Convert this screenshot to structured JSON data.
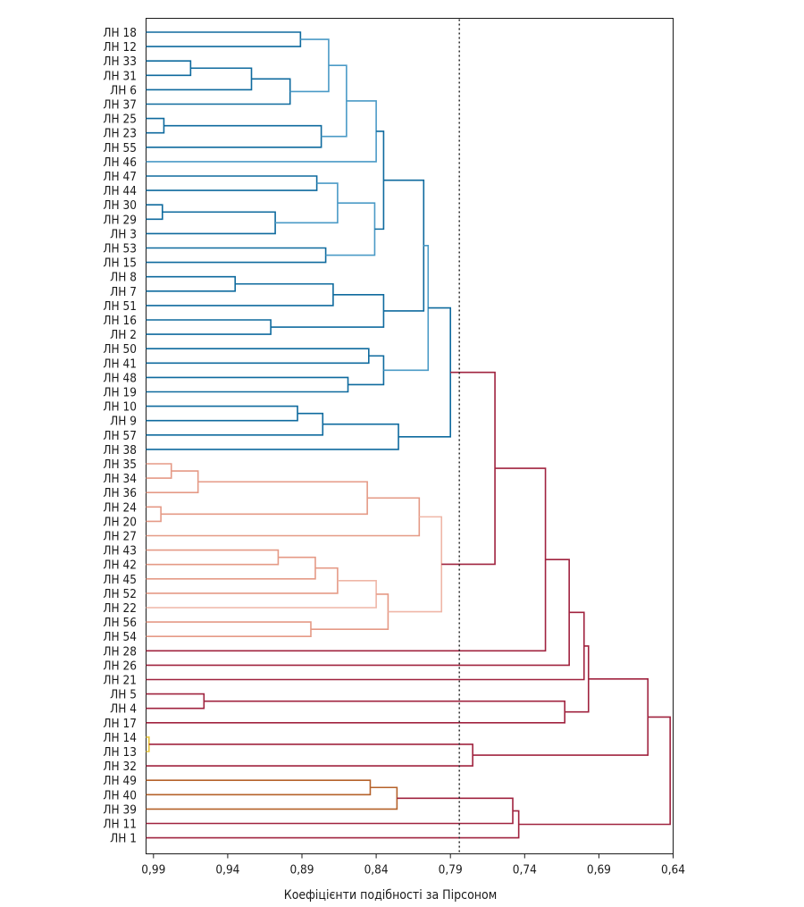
{
  "chart_data": {
    "type": "dendrogram",
    "xlabel": "Коефіцієнти подібності за Пірсоном",
    "xlim": [
      0.995,
      0.64
    ],
    "x_ticks": [
      {
        "value": 0.99,
        "label": "0,99"
      },
      {
        "value": 0.94,
        "label": "0,94"
      },
      {
        "value": 0.89,
        "label": "0,89"
      },
      {
        "value": 0.84,
        "label": "0,84"
      },
      {
        "value": 0.79,
        "label": "0,79"
      },
      {
        "value": 0.74,
        "label": "0,74"
      },
      {
        "value": 0.69,
        "label": "0,69"
      },
      {
        "value": 0.64,
        "label": "0,64"
      }
    ],
    "cutoff": 0.784,
    "leaves": [
      "ЛН 18",
      "ЛН 12",
      "ЛН 33",
      "ЛН 31",
      "ЛН 6",
      "ЛН 37",
      "ЛН 25",
      "ЛН 23",
      "ЛН 55",
      "ЛН 46",
      "ЛН 47",
      "ЛН 44",
      "ЛН 30",
      "ЛН 29",
      "ЛН 3",
      "ЛН 53",
      "ЛН 15",
      "ЛН 8",
      "ЛН 7",
      "ЛН 51",
      "ЛН 16",
      "ЛН 2",
      "ЛН 50",
      "ЛН 41",
      "ЛН 48",
      "ЛН 19",
      "ЛН 10",
      "ЛН 9",
      "ЛН 57",
      "ЛН 38",
      "ЛН 35",
      "ЛН 34",
      "ЛН 36",
      "ЛН 24",
      "ЛН 20",
      "ЛН 27",
      "ЛН 43",
      "ЛН 42",
      "ЛН 45",
      "ЛН 52",
      "ЛН 22",
      "ЛН 56",
      "ЛН 54",
      "ЛН 28",
      "ЛН 26",
      "ЛН 21",
      "ЛН 5",
      "ЛН 4",
      "ЛН 17",
      "ЛН 14",
      "ЛН 13",
      "ЛН 32",
      "ЛН 49",
      "ЛН 40",
      "ЛН 39",
      "ЛН 11",
      "ЛН 1"
    ],
    "merges": [
      {
        "a": "L0",
        "b": "L1",
        "h": 0.891,
        "c": "#0e6a9e"
      },
      {
        "a": "L2",
        "b": "L3",
        "h": 0.965,
        "c": "#0e6a9e"
      },
      {
        "a": "M1",
        "b": "L4",
        "h": 0.924,
        "c": "#0e6a9e"
      },
      {
        "a": "M2",
        "b": "L5",
        "h": 0.898,
        "c": "#0e6a9e"
      },
      {
        "a": "M0",
        "b": "M3",
        "h": 0.872,
        "c": "#4a9ac6"
      },
      {
        "a": "L6",
        "b": "L7",
        "h": 0.983,
        "c": "#0e6a9e"
      },
      {
        "a": "M5",
        "b": "L8",
        "h": 0.877,
        "c": "#0e6a9e"
      },
      {
        "a": "M4",
        "b": "M6",
        "h": 0.86,
        "c": "#4a9ac6"
      },
      {
        "a": "M7",
        "b": "L9",
        "h": 0.84,
        "c": "#4a9ac6"
      },
      {
        "a": "L10",
        "b": "L11",
        "h": 0.88,
        "c": "#0e6a9e"
      },
      {
        "a": "L12",
        "b": "L13",
        "h": 0.984,
        "c": "#0e6a9e"
      },
      {
        "a": "M10",
        "b": "L14",
        "h": 0.908,
        "c": "#0e6a9e"
      },
      {
        "a": "M9",
        "b": "M11",
        "h": 0.866,
        "c": "#4a9ac6"
      },
      {
        "a": "L15",
        "b": "L16",
        "h": 0.874,
        "c": "#0e6a9e"
      },
      {
        "a": "M12",
        "b": "M13",
        "h": 0.841,
        "c": "#4a9ac6"
      },
      {
        "a": "M8",
        "b": "M14",
        "h": 0.835,
        "c": "#0e6a9e"
      },
      {
        "a": "L17",
        "b": "L18",
        "h": 0.935,
        "c": "#0e6a9e"
      },
      {
        "a": "M16",
        "b": "L19",
        "h": 0.869,
        "c": "#0e6a9e"
      },
      {
        "a": "L20",
        "b": "L21",
        "h": 0.911,
        "c": "#0e6a9e"
      },
      {
        "a": "M17",
        "b": "M18",
        "h": 0.835,
        "c": "#0e6a9e"
      },
      {
        "a": "M15",
        "b": "M19",
        "h": 0.808,
        "c": "#0e6a9e"
      },
      {
        "a": "L22",
        "b": "L23",
        "h": 0.845,
        "c": "#0e6a9e"
      },
      {
        "a": "L24",
        "b": "L25",
        "h": 0.859,
        "c": "#0e6a9e"
      },
      {
        "a": "M21",
        "b": "M22",
        "h": 0.835,
        "c": "#0e6a9e"
      },
      {
        "a": "M20",
        "b": "M23",
        "h": 0.805,
        "c": "#4a9ac6"
      },
      {
        "a": "L26",
        "b": "L27",
        "h": 0.893,
        "c": "#0e6a9e"
      },
      {
        "a": "M25",
        "b": "L28",
        "h": 0.876,
        "c": "#0e6a9e"
      },
      {
        "a": "M26",
        "b": "L29",
        "h": 0.825,
        "c": "#0e6a9e"
      },
      {
        "a": "M24",
        "b": "M27",
        "h": 0.79,
        "c": "#0e6a9e"
      },
      {
        "a": "L30",
        "b": "L31",
        "h": 0.978,
        "c": "#e59a86"
      },
      {
        "a": "M29",
        "b": "L32",
        "h": 0.96,
        "c": "#e59a86"
      },
      {
        "a": "L33",
        "b": "L34",
        "h": 0.985,
        "c": "#e59a86"
      },
      {
        "a": "M30",
        "b": "M31",
        "h": 0.846,
        "c": "#e59a86"
      },
      {
        "a": "M32",
        "b": "L35",
        "h": 0.811,
        "c": "#e59a86"
      },
      {
        "a": "L36",
        "b": "L37",
        "h": 0.906,
        "c": "#e59a86"
      },
      {
        "a": "M34",
        "b": "L38",
        "h": 0.881,
        "c": "#e59a86"
      },
      {
        "a": "M35",
        "b": "L39",
        "h": 0.866,
        "c": "#e59a86"
      },
      {
        "a": "M36",
        "b": "L40",
        "h": 0.84,
        "c": "#efb6a7"
      },
      {
        "a": "L41",
        "b": "L42",
        "h": 0.884,
        "c": "#e59a86"
      },
      {
        "a": "M37",
        "b": "M38",
        "h": 0.832,
        "c": "#e59a86"
      },
      {
        "a": "M33",
        "b": "M39",
        "h": 0.796,
        "c": "#efb6a7"
      },
      {
        "a": "M28",
        "b": "M40",
        "h": 0.76,
        "c": "#a0233f"
      },
      {
        "a": "M41",
        "b": "L43",
        "h": 0.726,
        "c": "#a0233f"
      },
      {
        "a": "M42",
        "b": "L44",
        "h": 0.71,
        "c": "#a0233f"
      },
      {
        "a": "M43",
        "b": "L45",
        "h": 0.7,
        "c": "#a0233f"
      },
      {
        "a": "L46",
        "b": "L47",
        "h": 0.956,
        "c": "#a0233f"
      },
      {
        "a": "M45",
        "b": "L48",
        "h": 0.713,
        "c": "#a0233f"
      },
      {
        "a": "M44",
        "b": "M46",
        "h": 0.697,
        "c": "#a0233f"
      },
      {
        "a": "L49",
        "b": "L50",
        "h": 0.993,
        "c": "#e8c53a"
      },
      {
        "a": "M48",
        "b": "L51",
        "h": 0.775,
        "c": "#a0233f"
      },
      {
        "a": "L52",
        "b": "L53",
        "h": 0.844,
        "c": "#b5622a"
      },
      {
        "a": "M50",
        "b": "L54",
        "h": 0.826,
        "c": "#b5622a"
      },
      {
        "a": "M51",
        "b": "L55",
        "h": 0.748,
        "c": "#a0233f"
      },
      {
        "a": "M52",
        "b": "L56",
        "h": 0.744,
        "c": "#a0233f"
      },
      {
        "a": "M47",
        "b": "M49",
        "h": 0.657,
        "c": "#a0233f"
      },
      {
        "a": "M54",
        "b": "M53",
        "h": 0.642,
        "c": "#a0233f"
      }
    ]
  }
}
